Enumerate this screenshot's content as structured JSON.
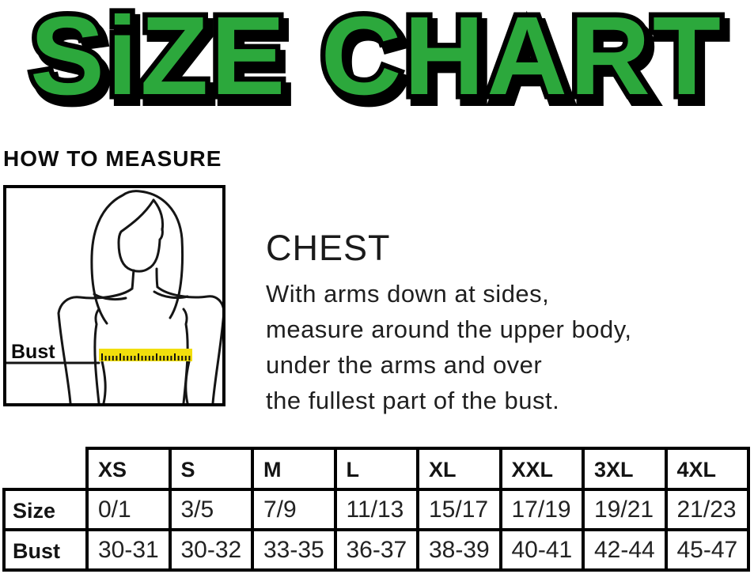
{
  "title": {
    "text": "SiZE CHART",
    "color": "#2CA83C",
    "outline_color": "#000000"
  },
  "how_to_measure": {
    "heading": "HOW TO MEASURE"
  },
  "measure_figure": {
    "label": "Bust",
    "tape_color": "#F2DF0C"
  },
  "instructions": {
    "heading": "CHEST",
    "body": "With arms down at sides,\nmeasure around the upper body,\nunder the arms and over\nthe fullest part of the bust."
  },
  "size_table": {
    "column_headers": [
      "XS",
      "S",
      "M",
      "L",
      "XL",
      "XXL",
      "3XL",
      "4XL"
    ],
    "rows": [
      {
        "label": "Size",
        "values": [
          "0/1",
          "3/5",
          "7/9",
          "11/13",
          "15/17",
          "17/19",
          "19/21",
          "21/23"
        ]
      },
      {
        "label": "Bust",
        "values": [
          "30-31",
          "30-32",
          "33-35",
          "36-37",
          "38-39",
          "40-41",
          "42-44",
          "45-47"
        ]
      }
    ]
  }
}
